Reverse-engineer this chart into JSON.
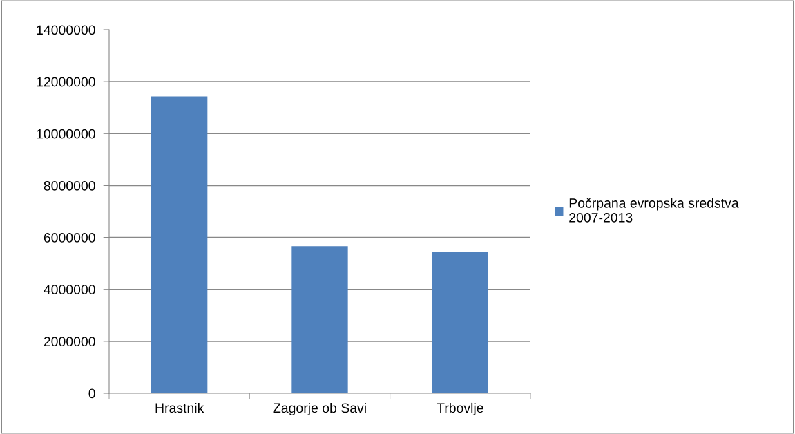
{
  "chart_data": {
    "type": "bar",
    "categories": [
      "Hrastnik",
      "Zagorje ob Savi",
      "Trbovlje"
    ],
    "series": [
      {
        "name": "Počrpana evropska sredstva 2007-2013",
        "color": "#4f81bd",
        "values": [
          11430000,
          5660000,
          5430000
        ]
      }
    ],
    "ylim": [
      0,
      14000000
    ],
    "yticks": [
      0,
      2000000,
      4000000,
      6000000,
      8000000,
      10000000,
      12000000,
      14000000
    ],
    "grid": "y",
    "legend": "right"
  }
}
